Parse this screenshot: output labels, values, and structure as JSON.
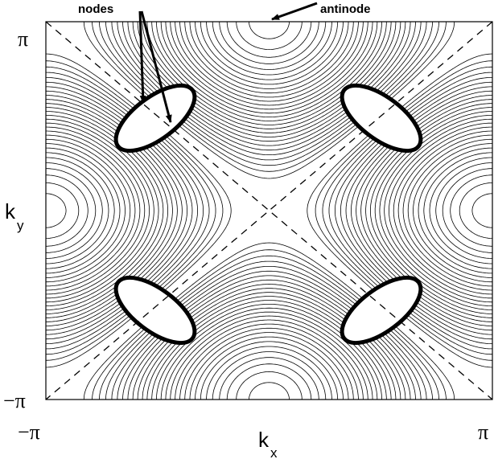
{
  "annotations": {
    "nodes": "nodes",
    "antinode": "antinode"
  },
  "axes": {
    "x_label": "k",
    "x_sub": "x",
    "y_label": "k",
    "y_sub": "y",
    "x_min": "−π",
    "x_max": "π",
    "y_min": "−π",
    "y_max": "π"
  },
  "style": {
    "line_color": "#000000",
    "background": "#ffffff"
  }
}
